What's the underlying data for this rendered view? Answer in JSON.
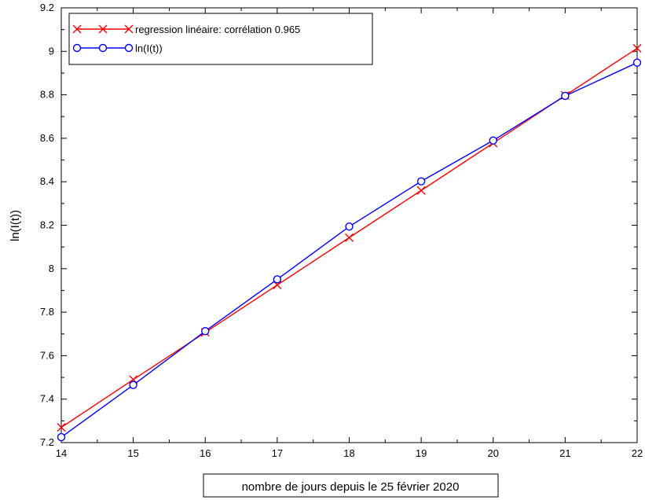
{
  "chart_data": {
    "type": "line",
    "title": "",
    "xlabel": "nombre de jours depuis le 25 février 2020",
    "ylabel": "ln(I(t))",
    "xlim": [
      14,
      22
    ],
    "ylim": [
      7.2,
      9.2
    ],
    "x_ticks": [
      14,
      15,
      16,
      17,
      18,
      19,
      20,
      21,
      22
    ],
    "y_ticks": [
      7.2,
      7.4,
      7.6,
      7.8,
      8.0,
      8.2,
      8.4,
      8.6,
      8.8,
      9.0,
      9.2
    ],
    "x_tick_labels": [
      "14",
      "15",
      "16",
      "17",
      "18",
      "19",
      "20",
      "21",
      "22"
    ],
    "y_tick_labels": [
      "7.2",
      "7.4",
      "7.6",
      "7.8",
      "8",
      "8.2",
      "8.4",
      "8.6",
      "8.8",
      "9",
      "9.2"
    ],
    "grid": false,
    "legend_position": "top-left",
    "x": [
      14,
      15,
      16,
      17,
      18,
      19,
      20,
      21,
      22
    ],
    "series": [
      {
        "name": "regression linéaire: corrélation 0.965",
        "marker": "x",
        "color": "#ff0000",
        "values": [
          7.27,
          7.49,
          7.707,
          7.925,
          8.143,
          8.36,
          8.578,
          8.797,
          9.014
        ]
      },
      {
        "name": "ln(I(t))",
        "marker": "o",
        "color": "#0000ff",
        "values": [
          7.225,
          7.465,
          7.713,
          7.951,
          8.194,
          8.402,
          8.59,
          8.795,
          8.948
        ]
      }
    ]
  }
}
